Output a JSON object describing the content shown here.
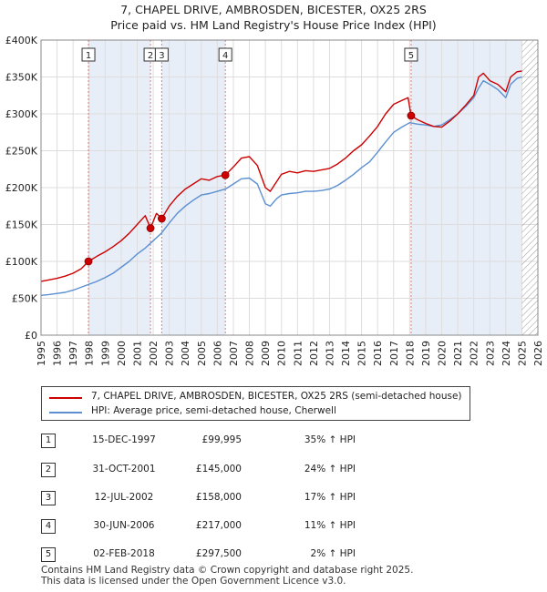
{
  "title_line1": "7, CHAPEL DRIVE, AMBROSDEN, BICESTER, OX25 2RS",
  "title_line2": "Price paid vs. HM Land Registry's House Price Index (HPI)",
  "chart_data": {
    "type": "line",
    "xlim": [
      1995,
      2026
    ],
    "ylim": [
      0,
      400000
    ],
    "y_ticks": [
      0,
      50000,
      100000,
      150000,
      200000,
      250000,
      300000,
      350000,
      400000
    ],
    "y_tick_labels": [
      "£0",
      "£50K",
      "£100K",
      "£150K",
      "£200K",
      "£250K",
      "£300K",
      "£350K",
      "£400K"
    ],
    "x_ticks": [
      1995,
      1996,
      1997,
      1998,
      1999,
      2000,
      2001,
      2002,
      2003,
      2004,
      2005,
      2006,
      2007,
      2008,
      2009,
      2010,
      2011,
      2012,
      2013,
      2014,
      2015,
      2016,
      2017,
      2018,
      2019,
      2020,
      2021,
      2022,
      2023,
      2024,
      2025,
      2026
    ],
    "x_tick_labels": [
      "1995",
      "1996",
      "1997",
      "1998",
      "1999",
      "2000",
      "2001",
      "2002",
      "2003",
      "2004",
      "2005",
      "2006",
      "2007",
      "2008",
      "2009",
      "2010",
      "2011",
      "2012",
      "2013",
      "2014",
      "2015",
      "2016",
      "2017",
      "2018",
      "2019",
      "2020",
      "2021",
      "2022",
      "2023",
      "2024",
      "2025",
      "2026"
    ],
    "shaded_bands": [
      [
        1997.96,
        2001.83
      ],
      [
        2002.53,
        2006.5
      ],
      [
        2018.09,
        2025.0
      ]
    ],
    "future_hatch_from": 2025.0,
    "series": [
      {
        "name": "7, CHAPEL DRIVE, AMBROSDEN, BICESTER, OX25 2RS (semi-detached house)",
        "color": "#cc0000",
        "x": [
          1995.0,
          1995.5,
          1996.0,
          1996.5,
          1997.0,
          1997.5,
          1997.96,
          1998.5,
          1999.0,
          1999.5,
          2000.0,
          2000.5,
          2001.0,
          2001.5,
          2001.83,
          2002.2,
          2002.53,
          2003.0,
          2003.5,
          2004.0,
          2004.5,
          2005.0,
          2005.5,
          2006.0,
          2006.5,
          2007.0,
          2007.5,
          2008.0,
          2008.5,
          2009.0,
          2009.3,
          2009.7,
          2010.0,
          2010.5,
          2011.0,
          2011.5,
          2012.0,
          2012.5,
          2013.0,
          2013.5,
          2014.0,
          2014.5,
          2015.0,
          2015.5,
          2016.0,
          2016.5,
          2017.0,
          2017.5,
          2017.9,
          2018.09,
          2018.5,
          2019.0,
          2019.5,
          2020.0,
          2020.5,
          2021.0,
          2021.5,
          2022.0,
          2022.3,
          2022.6,
          2023.0,
          2023.5,
          2024.0,
          2024.3,
          2024.7,
          2025.0
        ],
        "y": [
          73000,
          75000,
          77000,
          80000,
          84000,
          90000,
          99995,
          107000,
          113000,
          120000,
          128000,
          138000,
          150000,
          162000,
          145000,
          165000,
          158000,
          175000,
          188000,
          198000,
          205000,
          212000,
          210000,
          215000,
          217000,
          228000,
          240000,
          242000,
          230000,
          200000,
          195000,
          208000,
          218000,
          222000,
          220000,
          223000,
          222000,
          224000,
          226000,
          232000,
          240000,
          250000,
          258000,
          270000,
          283000,
          300000,
          313000,
          318000,
          322000,
          297500,
          292000,
          287000,
          283000,
          282000,
          290000,
          300000,
          312000,
          325000,
          350000,
          355000,
          345000,
          340000,
          330000,
          350000,
          357000,
          358000
        ]
      },
      {
        "name": "HPI: Average price, semi-detached house, Cherwell",
        "color": "#5b8fd0",
        "x": [
          1995.0,
          1995.5,
          1996.0,
          1996.5,
          1997.0,
          1997.5,
          1998.0,
          1998.5,
          1999.0,
          1999.5,
          2000.0,
          2000.5,
          2001.0,
          2001.5,
          2002.0,
          2002.5,
          2003.0,
          2003.5,
          2004.0,
          2004.5,
          2005.0,
          2005.5,
          2006.0,
          2006.5,
          2007.0,
          2007.5,
          2008.0,
          2008.5,
          2009.0,
          2009.3,
          2009.7,
          2010.0,
          2010.5,
          2011.0,
          2011.5,
          2012.0,
          2012.5,
          2013.0,
          2013.5,
          2014.0,
          2014.5,
          2015.0,
          2015.5,
          2016.0,
          2016.5,
          2017.0,
          2017.5,
          2018.0,
          2018.5,
          2019.0,
          2019.5,
          2020.0,
          2020.5,
          2021.0,
          2021.5,
          2022.0,
          2022.3,
          2022.6,
          2023.0,
          2023.5,
          2024.0,
          2024.3,
          2024.7,
          2025.0
        ],
        "y": [
          54000,
          55000,
          56500,
          58000,
          61000,
          65000,
          69000,
          73000,
          78000,
          84000,
          92000,
          100000,
          110000,
          118000,
          128000,
          138000,
          152000,
          165000,
          175000,
          183000,
          190000,
          192000,
          195000,
          198000,
          205000,
          212000,
          213000,
          205000,
          178000,
          175000,
          185000,
          190000,
          192000,
          193000,
          195000,
          195000,
          196000,
          198000,
          203000,
          210000,
          218000,
          227000,
          235000,
          248000,
          262000,
          275000,
          282000,
          288000,
          286000,
          285000,
          283000,
          285000,
          292000,
          300000,
          310000,
          322000,
          335000,
          345000,
          340000,
          333000,
          322000,
          340000,
          348000,
          350000
        ]
      }
    ],
    "sales": [
      {
        "label": "1",
        "x": 1997.96,
        "y": 99995
      },
      {
        "label": "2",
        "x": 2001.83,
        "y": 145000
      },
      {
        "label": "3",
        "x": 2002.53,
        "y": 158000
      },
      {
        "label": "4",
        "x": 2006.5,
        "y": 217000
      },
      {
        "label": "5",
        "x": 2018.09,
        "y": 297500
      }
    ]
  },
  "legend": {
    "property_label": "7, CHAPEL DRIVE, AMBROSDEN, BICESTER, OX25 2RS (semi-detached house)",
    "hpi_label": "HPI: Average price, semi-detached house, Cherwell"
  },
  "sales_table": [
    {
      "num": "1",
      "date": "15-DEC-1997",
      "price": "£99,995",
      "hpi": "35% ↑ HPI"
    },
    {
      "num": "2",
      "date": "31-OCT-2001",
      "price": "£145,000",
      "hpi": "24% ↑ HPI"
    },
    {
      "num": "3",
      "date": "12-JUL-2002",
      "price": "£158,000",
      "hpi": "17% ↑ HPI"
    },
    {
      "num": "4",
      "date": "30-JUN-2006",
      "price": "£217,000",
      "hpi": "11% ↑ HPI"
    },
    {
      "num": "5",
      "date": "02-FEB-2018",
      "price": "£297,500",
      "hpi": "2% ↑ HPI"
    }
  ],
  "footer_line1": "Contains HM Land Registry data © Crown copyright and database right 2025.",
  "footer_line2": "This data is licensed under the Open Government Licence v3.0.",
  "colors": {
    "property": "#cc0000",
    "hpi": "#5b8fd0",
    "band": "#e8eef8",
    "vline": "#e07a7a"
  }
}
